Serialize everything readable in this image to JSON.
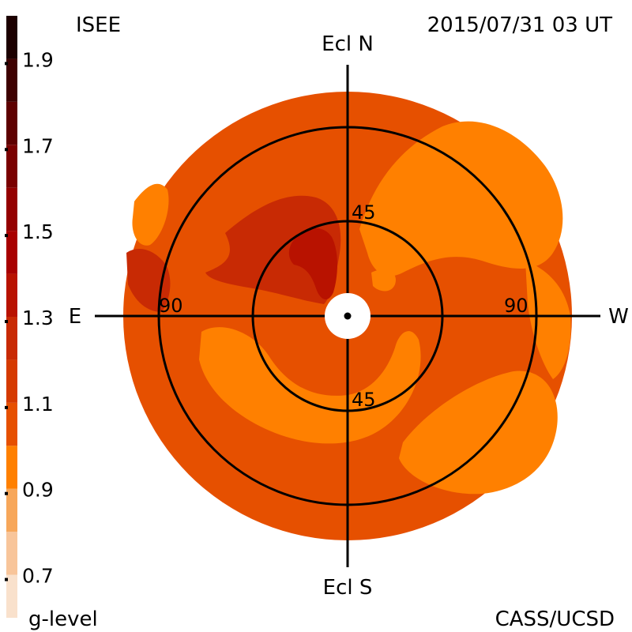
{
  "header": {
    "source": "ISEE",
    "timestamp": "2015/07/31 03 UT",
    "credit": "CASS/UCSD",
    "colorbar_title": "g-level"
  },
  "chart_data": {
    "type": "heatmap",
    "projection": "polar sky map centered on Sun (elongation rings)",
    "directions": {
      "north": "Ecl N",
      "south": "Ecl S",
      "east": "E",
      "west": "W"
    },
    "rings": [
      {
        "elongation": 45,
        "label": "45"
      },
      {
        "elongation": 90,
        "label": "90"
      }
    ],
    "colorbar": {
      "ticks": [
        "1.9",
        "1.7",
        "1.5",
        "1.3",
        "1.1",
        "0.9",
        "0.7"
      ],
      "tick_values": [
        1.9,
        1.7,
        1.5,
        1.3,
        1.1,
        0.9,
        0.7
      ],
      "range": [
        0.6,
        2.0
      ],
      "bands": [
        {
          "from": 0.6,
          "to": 0.7,
          "color": "#f9e1cc"
        },
        {
          "from": 0.7,
          "to": 0.8,
          "color": "#f8c59a"
        },
        {
          "from": 0.8,
          "to": 0.9,
          "color": "#f7a75a"
        },
        {
          "from": 0.9,
          "to": 1.0,
          "color": "#ff8000"
        },
        {
          "from": 1.0,
          "to": 1.1,
          "color": "#e65000"
        },
        {
          "from": 1.1,
          "to": 1.2,
          "color": "#d53a00"
        },
        {
          "from": 1.2,
          "to": 1.3,
          "color": "#c82a04"
        },
        {
          "from": 1.3,
          "to": 1.4,
          "color": "#b81200"
        },
        {
          "from": 1.4,
          "to": 1.5,
          "color": "#a80000"
        },
        {
          "from": 1.5,
          "to": 1.6,
          "color": "#940000"
        },
        {
          "from": 1.6,
          "to": 1.7,
          "color": "#7a0000"
        },
        {
          "from": 1.7,
          "to": 1.8,
          "color": "#5e0000"
        },
        {
          "from": 1.8,
          "to": 1.9,
          "color": "#3e0000"
        },
        {
          "from": 1.9,
          "to": 2.0,
          "color": "#1c0000"
        }
      ]
    },
    "background_level": 1.05,
    "regions_note": "g-level field: enhanced (1.2-1.4) northeast of Sun, reduced (0.9-1.0) patches west and south"
  }
}
